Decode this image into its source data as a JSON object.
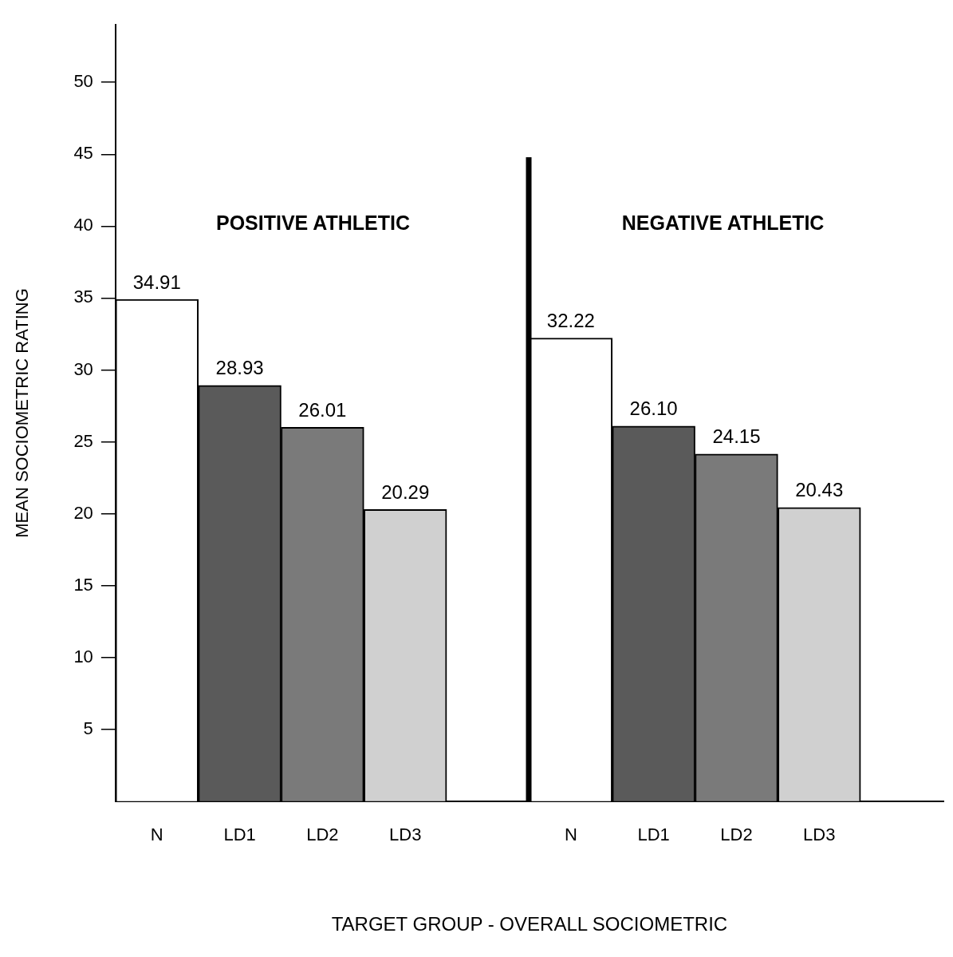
{
  "chart_data": {
    "type": "bar",
    "xlabel": "TARGET GROUP - OVERALL SOCIOMETRIC",
    "ylabel": "MEAN SOCIOMETRIC RATING",
    "categories": [
      "N",
      "LD1",
      "LD2",
      "LD3",
      null,
      "N",
      "LD1",
      "LD2",
      "LD3",
      null
    ],
    "values": [
      34.91,
      28.93,
      26.01,
      20.29,
      null,
      32.22,
      26.1,
      24.15,
      20.43,
      null
    ],
    "value_labels": [
      "34.91",
      "28.93",
      "26.01",
      "20.29",
      null,
      "32.22",
      "26.10",
      "24.15",
      "20.43",
      null
    ],
    "colors": [
      "#ffffff",
      "#5a5a5a",
      "#7a7a7a",
      "#d0d0d0",
      "#ffffff",
      "#ffffff",
      "#5a5a5a",
      "#7a7a7a",
      "#d0d0d0",
      "#ffffff"
    ],
    "ylim": [
      0,
      54
    ],
    "yticks": [
      5,
      10,
      15,
      20,
      25,
      30,
      35,
      40,
      45,
      50
    ],
    "annotations": [
      "POSITIVE ATHLETIC",
      "NEGATIVE ATHLETIC"
    ],
    "grid": false,
    "legend": false
  }
}
